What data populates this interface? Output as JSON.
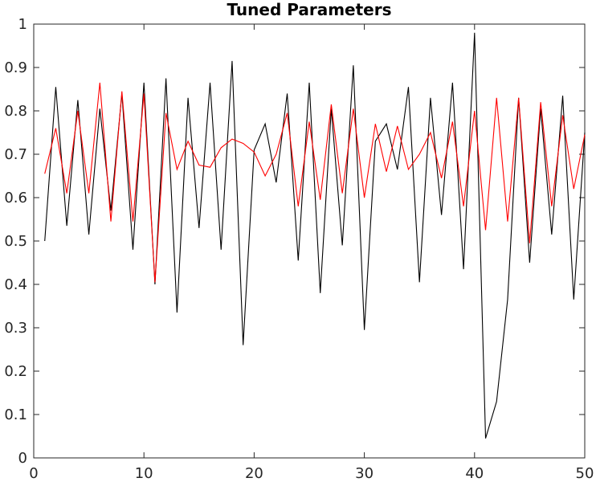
{
  "chart_data": {
    "type": "line",
    "title": "Tuned Parameters",
    "xlabel": "",
    "ylabel": "",
    "xlim": [
      0,
      50
    ],
    "ylim": [
      0,
      1
    ],
    "grid": false,
    "x_ticks": [
      "0",
      "10",
      "20",
      "30",
      "40",
      "50"
    ],
    "y_ticks": [
      "0",
      "0.1",
      "0.2",
      "0.3",
      "0.4",
      "0.5",
      "0.6",
      "0.7",
      "0.8",
      "0.9",
      "1"
    ],
    "x": [
      1,
      2,
      3,
      4,
      5,
      6,
      7,
      8,
      9,
      10,
      11,
      12,
      13,
      14,
      15,
      16,
      17,
      18,
      19,
      20,
      21,
      22,
      23,
      24,
      25,
      26,
      27,
      28,
      29,
      30,
      31,
      32,
      33,
      34,
      35,
      36,
      37,
      38,
      39,
      40,
      41,
      42,
      43,
      44,
      45,
      46,
      47,
      48,
      49,
      50
    ],
    "series": [
      {
        "color": "#000000",
        "values": [
          0.5,
          0.855,
          0.535,
          0.825,
          0.515,
          0.805,
          0.57,
          0.84,
          0.48,
          0.865,
          0.4,
          0.875,
          0.335,
          0.83,
          0.53,
          0.865,
          0.48,
          0.915,
          0.26,
          0.71,
          0.77,
          0.635,
          0.84,
          0.455,
          0.865,
          0.38,
          0.805,
          0.49,
          0.905,
          0.295,
          0.73,
          0.77,
          0.665,
          0.855,
          0.405,
          0.83,
          0.56,
          0.865,
          0.435,
          0.98,
          0.045,
          0.13,
          0.365,
          0.83,
          0.45,
          0.805,
          0.515,
          0.835,
          0.365,
          0.75
        ]
      },
      {
        "color": "#ff0000",
        "values": [
          0.655,
          0.76,
          0.61,
          0.8,
          0.61,
          0.865,
          0.545,
          0.845,
          0.545,
          0.84,
          0.405,
          0.795,
          0.665,
          0.73,
          0.675,
          0.67,
          0.715,
          0.735,
          0.725,
          0.705,
          0.65,
          0.7,
          0.795,
          0.58,
          0.775,
          0.595,
          0.815,
          0.61,
          0.805,
          0.6,
          0.77,
          0.66,
          0.765,
          0.665,
          0.7,
          0.75,
          0.645,
          0.775,
          0.58,
          0.8,
          0.525,
          0.83,
          0.545,
          0.83,
          0.495,
          0.82,
          0.58,
          0.79,
          0.62,
          0.745
        ]
      }
    ]
  }
}
